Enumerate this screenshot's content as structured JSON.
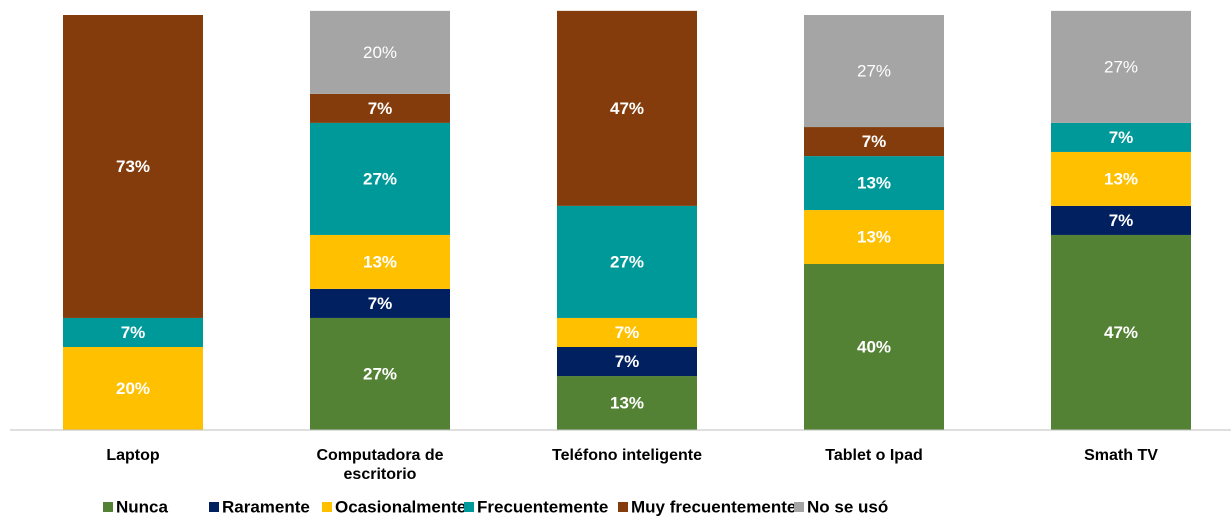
{
  "chart_data": {
    "type": "stacked_bar",
    "categories": [
      "Laptop",
      "Computadora de escritorio",
      "Teléfono inteligente",
      "Tablet o Ipad",
      "Smath TV"
    ],
    "ylim": [
      0,
      100
    ],
    "series": [
      {
        "name": "Nunca",
        "color": "#548235",
        "values": [
          null,
          27,
          13,
          40,
          47
        ],
        "value_labels": [
          null,
          "27%",
          "13%",
          "40%",
          "47%"
        ]
      },
      {
        "name": "Raramente",
        "color": "#002060",
        "values": [
          null,
          7,
          7,
          null,
          7
        ],
        "value_labels": [
          null,
          "7%",
          "7%",
          null,
          "7%"
        ]
      },
      {
        "name": "Ocasionalmente",
        "color": "#ffc000",
        "values": [
          20,
          13,
          7,
          13,
          13
        ],
        "value_labels": [
          "20%",
          "13%",
          "7%",
          "13%",
          "13%"
        ]
      },
      {
        "name": "Frecuentemente",
        "color": "#009999",
        "values": [
          7,
          27,
          27,
          13,
          7
        ],
        "value_labels": [
          "7%",
          "27%",
          "27%",
          "13%",
          "7%"
        ]
      },
      {
        "name": "Muy frecuentemente",
        "color": "#843c0c",
        "values": [
          73,
          7,
          47,
          7,
          null
        ],
        "value_labels": [
          "73%",
          "7%",
          "47%",
          "7%",
          null
        ]
      },
      {
        "name": "No se usó",
        "color": "#a5a5a5",
        "values": [
          null,
          20,
          null,
          27,
          27
        ],
        "value_labels": [
          null,
          "20%",
          null,
          "27%",
          "27%"
        ]
      }
    ]
  }
}
